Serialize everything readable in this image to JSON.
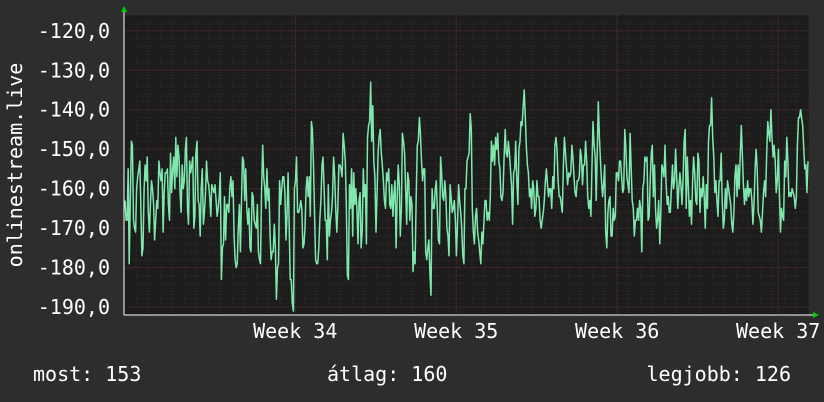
{
  "chart_data": {
    "type": "line",
    "ylabel": "onlinestream.live",
    "ylim": [
      -192,
      -116
    ],
    "yticks": [
      -120,
      -130,
      -140,
      -150,
      -160,
      -170,
      -180,
      -190
    ],
    "ytick_labels": [
      "-120,0",
      "-130,0",
      "-140,0",
      "-150,0",
      "-160,0",
      "-170,0",
      "-180,0",
      "-190,0"
    ],
    "xtick_labels": [
      "Week 34",
      "Week 35",
      "Week 36",
      "Week 37"
    ],
    "xtick_positions": [
      0.25,
      0.485,
      0.72,
      0.955
    ],
    "grid": true,
    "colors": {
      "background": "#2d2d2d",
      "plot": "#1c1c1c",
      "grid": "#5a3030",
      "line": "#7ee8ae",
      "arrow": "#00cc00"
    },
    "series": [
      {
        "values": [
          -163,
          -168,
          -168,
          -155,
          -179,
          -163,
          -148,
          -149,
          -168,
          -170,
          -171,
          -160,
          -157,
          -155,
          -153,
          -165,
          -177,
          -175,
          -160,
          -154,
          -158,
          -152,
          -166,
          -171,
          -164,
          -158,
          -160,
          -164,
          -173,
          -168,
          -163,
          -165,
          -153,
          -156,
          -158,
          -155,
          -171,
          -161,
          -156,
          -156,
          -155,
          -164,
          -168,
          -151,
          -161,
          -155,
          -152,
          -160,
          -147,
          -157,
          -149,
          -152,
          -161,
          -166,
          -154,
          -160,
          -158,
          -150,
          -147,
          -165,
          -169,
          -153,
          -156,
          -154,
          -152,
          -170,
          -167,
          -151,
          -148,
          -163,
          -164,
          -172,
          -160,
          -155,
          -169,
          -166,
          -161,
          -153,
          -158,
          -159,
          -162,
          -167,
          -159,
          -160,
          -161,
          -159,
          -163,
          -167,
          -165,
          -162,
          -156,
          -183,
          -175,
          -174,
          -162,
          -173,
          -164,
          -164,
          -166,
          -160,
          -157,
          -162,
          -158,
          -172,
          -178,
          -180,
          -179,
          -170,
          -164,
          -176,
          -163,
          -152,
          -153,
          -163,
          -155,
          -165,
          -169,
          -165,
          -175,
          -176,
          -161,
          -162,
          -168,
          -169,
          -170,
          -164,
          -176,
          -178,
          -179,
          -160,
          -149,
          -157,
          -160,
          -165,
          -155,
          -163,
          -160,
          -172,
          -178,
          -176,
          -176,
          -169,
          -175,
          -188,
          -180,
          -179,
          -158,
          -164,
          -160,
          -157,
          -157,
          -161,
          -173,
          -167,
          -156,
          -168,
          -183,
          -183,
          -189,
          -191,
          -160,
          -158,
          -152,
          -166,
          -166,
          -165,
          -163,
          -165,
          -175,
          -174,
          -170,
          -160,
          -157,
          -162,
          -157,
          -167,
          -143,
          -145,
          -154,
          -166,
          -178,
          -179,
          -179,
          -175,
          -168,
          -163,
          -154,
          -152,
          -160,
          -168,
          -168,
          -178,
          -159,
          -172,
          -168,
          -166,
          -162,
          -152,
          -157,
          -165,
          -171,
          -165,
          -154,
          -154,
          -155,
          -157,
          -146,
          -149,
          -153,
          -164,
          -182,
          -183,
          -159,
          -165,
          -155,
          -172,
          -156,
          -164,
          -160,
          -165,
          -174,
          -163,
          -161,
          -175,
          -171,
          -155,
          -162,
          -159,
          -174,
          -147,
          -144,
          -143,
          -133,
          -148,
          -139,
          -153,
          -157,
          -171,
          -162,
          -151,
          -147,
          -145,
          -151,
          -154,
          -158,
          -163,
          -165,
          -156,
          -158,
          -155,
          -164,
          -165,
          -159,
          -167,
          -161,
          -158,
          -175,
          -163,
          -154,
          -159,
          -172,
          -165,
          -146,
          -148,
          -151,
          -160,
          -169,
          -156,
          -158,
          -168,
          -162,
          -164,
          -181,
          -176,
          -179,
          -162,
          -149,
          -148,
          -142,
          -146,
          -153,
          -158,
          -155,
          -155,
          -176,
          -178,
          -175,
          -173,
          -182,
          -187,
          -160,
          -165,
          -165,
          -160,
          -158,
          -166,
          -173,
          -174,
          -152,
          -156,
          -162,
          -163,
          -158,
          -162,
          -170,
          -172,
          -177,
          -159,
          -162,
          -166,
          -165,
          -163,
          -168,
          -177,
          -169,
          -159,
          -163,
          -166,
          -170,
          -177,
          -179,
          -160,
          -160,
          -153,
          -152,
          -151,
          -141,
          -145,
          -165,
          -171,
          -174,
          -167,
          -165,
          -171,
          -173,
          -176,
          -179,
          -171,
          -174,
          -168,
          -163,
          -163,
          -168,
          -166,
          -168,
          -162,
          -148,
          -153,
          -149,
          -154,
          -147,
          -150,
          -146,
          -153,
          -155,
          -162,
          -163,
          -161,
          -152,
          -145,
          -151,
          -152,
          -148,
          -151,
          -155,
          -159,
          -169,
          -156,
          -155,
          -148,
          -158,
          -164,
          -150,
          -148,
          -143,
          -144,
          -139,
          -135,
          -142,
          -149,
          -154,
          -156,
          -162,
          -160,
          -165,
          -158,
          -160,
          -167,
          -165,
          -158,
          -162,
          -162,
          -168,
          -170,
          -168,
          -166,
          -163,
          -158,
          -155,
          -159,
          -162,
          -160,
          -160,
          -165,
          -157,
          -160,
          -149,
          -147,
          -150,
          -158,
          -162,
          -162,
          -164,
          -166,
          -154,
          -147,
          -151,
          -155,
          -159,
          -156,
          -157,
          -156,
          -149,
          -152,
          -157,
          -161,
          -162,
          -158,
          -158,
          -157,
          -150,
          -152,
          -159,
          -154,
          -154,
          -148,
          -153,
          -162,
          -165,
          -163,
          -167,
          -154,
          -143,
          -149,
          -152,
          -163,
          -150,
          -138,
          -147,
          -153,
          -158,
          -162,
          -159,
          -154,
          -171,
          -175,
          -166,
          -163,
          -162,
          -172,
          -172,
          -165,
          -168,
          -167,
          -156,
          -156,
          -158,
          -153,
          -153,
          -157,
          -161,
          -160,
          -145,
          -150,
          -157,
          -159,
          -161,
          -146,
          -155,
          -163,
          -165,
          -172,
          -168,
          -168,
          -165,
          -168,
          -163,
          -165,
          -176,
          -160,
          -158,
          -152,
          -153,
          -152,
          -168,
          -167,
          -158,
          -151,
          -149,
          -162,
          -154,
          -165,
          -170,
          -168,
          -163,
          -174,
          -166,
          -154,
          -155,
          -157,
          -149,
          -159,
          -164,
          -162,
          -166,
          -166,
          -160,
          -154,
          -160,
          -158,
          -150,
          -157,
          -165,
          -160,
          -156,
          -159,
          -164,
          -158,
          -148,
          -145,
          -165,
          -152,
          -159,
          -167,
          -163,
          -169,
          -158,
          -152,
          -156,
          -163,
          -164,
          -151,
          -153,
          -166,
          -160,
          -162,
          -157,
          -162,
          -170,
          -159,
          -165,
          -148,
          -144,
          -144,
          -137,
          -147,
          -152,
          -161,
          -158,
          -163,
          -167,
          -158,
          -158,
          -151,
          -163,
          -170,
          -168,
          -160,
          -165,
          -158,
          -160,
          -162,
          -164,
          -169,
          -171,
          -166,
          -157,
          -154,
          -162,
          -154,
          -160,
          -152,
          -144,
          -151,
          -159,
          -164,
          -160,
          -163,
          -158,
          -162,
          -160,
          -160,
          -163,
          -169,
          -164,
          -155,
          -150,
          -155,
          -166,
          -167,
          -168,
          -171,
          -166,
          -161,
          -158,
          -162,
          -151,
          -143,
          -146,
          -148,
          -140,
          -147,
          -152,
          -149,
          -153,
          -161,
          -158,
          -150,
          -161,
          -171,
          -165,
          -167,
          -168,
          -153,
          -157,
          -147,
          -153,
          -162,
          -161,
          -162,
          -160,
          -161,
          -162,
          -165,
          -162,
          -149,
          -142,
          -142,
          -140,
          -142,
          -144,
          -150,
          -155,
          -154,
          -161,
          -153
        ]
      }
    ]
  },
  "legend": {
    "most": "most: 153",
    "avg": "átlag: 160",
    "best": "legjobb: 126"
  }
}
